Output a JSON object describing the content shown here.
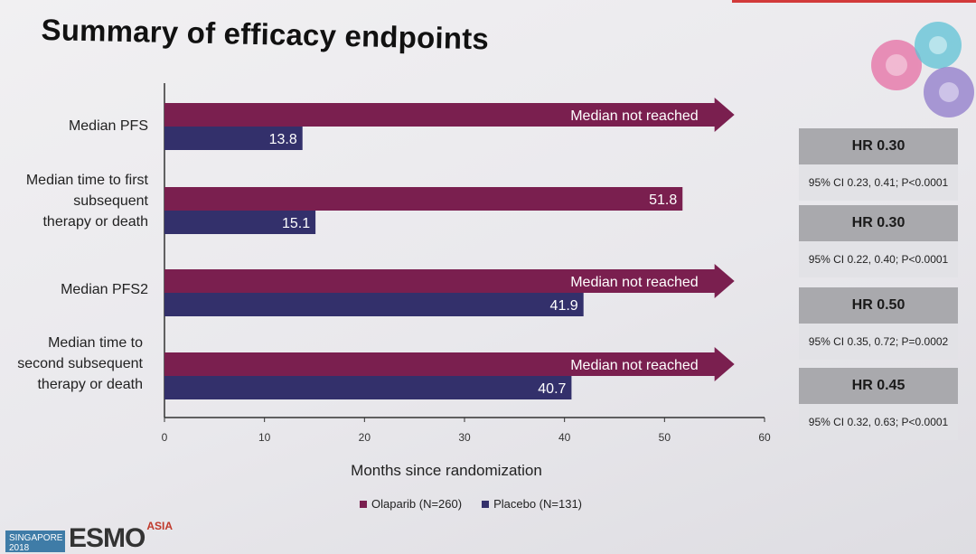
{
  "title": "Summary of efficacy endpoints",
  "chart_data": {
    "type": "bar",
    "orientation": "horizontal",
    "title": "",
    "xlabel": "Months since randomization",
    "ylabel": "",
    "xlim": [
      0,
      60
    ],
    "xticks": [
      0,
      10,
      20,
      30,
      40,
      50,
      60
    ],
    "grid": false,
    "legend_position": "bottom",
    "categories": [
      "Median PFS",
      "Median time to first subsequent therapy or death",
      "Median PFS2",
      "Median time to second subsequent therapy or death"
    ],
    "category_lines": [
      [
        "Median PFS"
      ],
      [
        "Median time to first",
        "subsequent",
        "therapy or death"
      ],
      [
        "Median PFS2"
      ],
      [
        "Median time to",
        "second subsequent",
        "therapy or death"
      ]
    ],
    "series": [
      {
        "name": "Olaparib (N=260)",
        "color": "#7a1f4f",
        "values": [
          null,
          51.8,
          null,
          null
        ],
        "labels": [
          "Median not reached",
          "51.8",
          "Median not reached",
          "Median not reached"
        ],
        "not_reached": [
          true,
          false,
          true,
          true
        ]
      },
      {
        "name": "Placebo (N=131)",
        "color": "#33306b",
        "values": [
          13.8,
          15.1,
          41.9,
          40.7
        ],
        "labels": [
          "13.8",
          "15.1",
          "41.9",
          "40.7"
        ],
        "not_reached": [
          false,
          false,
          false,
          false
        ]
      }
    ],
    "hazard_ratios": [
      {
        "hr": "HR 0.30",
        "ci": "95% CI 0.23, 0.41; P<0.0001"
      },
      {
        "hr": "HR 0.30",
        "ci": "95% CI 0.22, 0.40; P<0.0001"
      },
      {
        "hr": "HR 0.50",
        "ci": "95% CI 0.35, 0.72; P=0.0002"
      },
      {
        "hr": "HR 0.45",
        "ci": "95% CI 0.32, 0.63; P<0.0001"
      }
    ]
  },
  "footer": {
    "meeting_tag": "SINGAPORE 2018",
    "logo_text": "ESMO",
    "logo_sup": "ASIA"
  },
  "colors": {
    "olaparib": "#7a1f4f",
    "placebo": "#33306b",
    "hr_header": "#a9a9ad",
    "hr_body": "#e2e2e6"
  }
}
